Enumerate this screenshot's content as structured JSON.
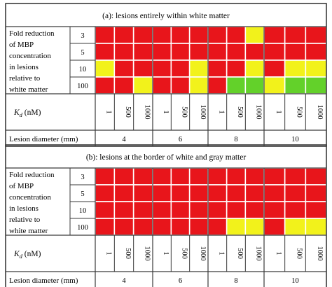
{
  "colors": {
    "red": "#e8151b",
    "yellow": "#f2f21b",
    "green": "#63d12a",
    "border": "#3a3a3a"
  },
  "row_label_lines": [
    "Fold reduction",
    "of MBP",
    "concentration",
    "in lesions",
    "relative to",
    "white matter"
  ],
  "fold_reductions": [
    "3",
    "5",
    "10",
    "100"
  ],
  "kd_label_main": "K",
  "kd_label_sub": "d",
  "kd_label_unit": " (nM)",
  "kd_values": [
    "1",
    "500",
    "1000"
  ],
  "lesion_label": "Lesion diameter (mm)",
  "lesion_diameters": [
    "4",
    "6",
    "8",
    "10"
  ],
  "panels": [
    {
      "title": "(a): lesions entirely within white matter",
      "grid": [
        [
          [
            "red",
            "red",
            "red"
          ],
          [
            "red",
            "red",
            "red"
          ],
          [
            "red",
            "red",
            "yellow"
          ],
          [
            "red",
            "red",
            "red"
          ]
        ],
        [
          [
            "red",
            "red",
            "red"
          ],
          [
            "red",
            "red",
            "red"
          ],
          [
            "red",
            "red",
            "red"
          ],
          [
            "red",
            "red",
            "red"
          ]
        ],
        [
          [
            "yellow",
            "red",
            "red"
          ],
          [
            "red",
            "red",
            "yellow"
          ],
          [
            "red",
            "red",
            "yellow"
          ],
          [
            "red",
            "yellow",
            "yellow"
          ]
        ],
        [
          [
            "red",
            "red",
            "yellow"
          ],
          [
            "red",
            "red",
            "yellow"
          ],
          [
            "red",
            "green",
            "green"
          ],
          [
            "yellow",
            "green",
            "green"
          ]
        ]
      ]
    },
    {
      "title": "(b): lesions at the border of white and gray matter",
      "grid": [
        [
          [
            "red",
            "red",
            "red"
          ],
          [
            "red",
            "red",
            "red"
          ],
          [
            "red",
            "red",
            "red"
          ],
          [
            "red",
            "red",
            "red"
          ]
        ],
        [
          [
            "red",
            "red",
            "red"
          ],
          [
            "red",
            "red",
            "red"
          ],
          [
            "red",
            "red",
            "red"
          ],
          [
            "red",
            "red",
            "red"
          ]
        ],
        [
          [
            "red",
            "red",
            "red"
          ],
          [
            "red",
            "red",
            "red"
          ],
          [
            "red",
            "red",
            "red"
          ],
          [
            "red",
            "red",
            "red"
          ]
        ],
        [
          [
            "red",
            "red",
            "red"
          ],
          [
            "red",
            "red",
            "red"
          ],
          [
            "red",
            "yellow",
            "yellow"
          ],
          [
            "red",
            "yellow",
            "yellow"
          ]
        ]
      ]
    }
  ]
}
